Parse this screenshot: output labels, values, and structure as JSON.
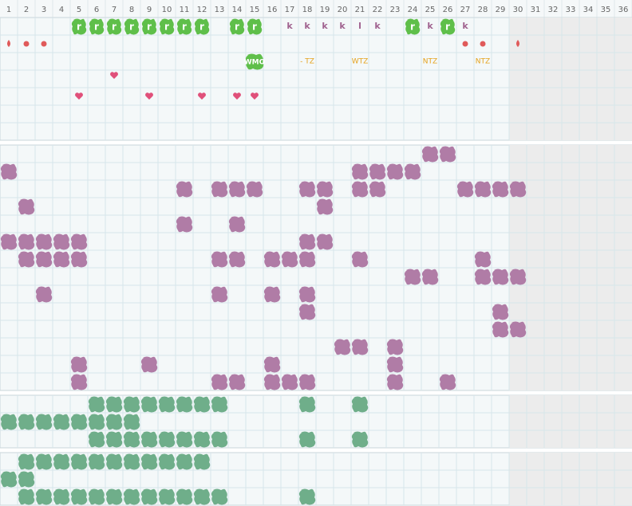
{
  "columns": [
    "1",
    "2",
    "3",
    "4",
    "5",
    "6",
    "7",
    "8",
    "9",
    "10",
    "11",
    "12",
    "13",
    "14",
    "15",
    "16",
    "17",
    "18",
    "19",
    "20",
    "21",
    "22",
    "23",
    "24",
    "25",
    "26",
    "27",
    "28",
    "29",
    "30",
    "31",
    "32",
    "33",
    "34",
    "35",
    "36"
  ],
  "top_rows": [
    [
      {
        "day": 5,
        "label": "r",
        "kind": "tag"
      },
      {
        "day": 6,
        "label": "r",
        "kind": "tag"
      },
      {
        "day": 7,
        "label": "r",
        "kind": "tag"
      },
      {
        "day": 8,
        "label": "r",
        "kind": "tag"
      },
      {
        "day": 9,
        "label": "r",
        "kind": "tag"
      },
      {
        "day": 10,
        "label": "r",
        "kind": "tag"
      },
      {
        "day": 11,
        "label": "r",
        "kind": "tag"
      },
      {
        "day": 12,
        "label": "r",
        "kind": "tag"
      },
      {
        "day": 14,
        "label": "r",
        "kind": "tag"
      },
      {
        "day": 15,
        "label": "r",
        "kind": "tag"
      },
      {
        "day": 17,
        "label": "k",
        "kind": "text"
      },
      {
        "day": 18,
        "label": "k",
        "kind": "text"
      },
      {
        "day": 19,
        "label": "k",
        "kind": "text"
      },
      {
        "day": 20,
        "label": "k",
        "kind": "text"
      },
      {
        "day": 21,
        "label": "l",
        "kind": "text"
      },
      {
        "day": 22,
        "label": "k",
        "kind": "text"
      },
      {
        "day": 24,
        "label": "r",
        "kind": "tag"
      },
      {
        "day": 25,
        "label": "k",
        "kind": "text"
      },
      {
        "day": 26,
        "label": "r",
        "kind": "tag"
      },
      {
        "day": 27,
        "label": "k",
        "kind": "text"
      }
    ],
    [
      {
        "day": 1,
        "kind": "drop"
      },
      {
        "day": 2,
        "kind": "dot"
      },
      {
        "day": 3,
        "kind": "dot"
      },
      {
        "day": 27,
        "kind": "dot"
      },
      {
        "day": 28,
        "kind": "dot"
      },
      {
        "day": 30,
        "kind": "drop"
      }
    ],
    [
      {
        "day": 15,
        "label": "WMO",
        "kind": "tag"
      },
      {
        "day": 18,
        "label": "- TZ",
        "kind": "note"
      },
      {
        "day": 21,
        "label": "WTZ",
        "kind": "note"
      },
      {
        "day": 25,
        "label": "NTZ",
        "kind": "note"
      },
      {
        "day": 28,
        "label": "NTZ",
        "kind": "note"
      }
    ],
    [
      {
        "day": 7,
        "kind": "heart"
      }
    ],
    [
      {
        "day": 5,
        "kind": "heart"
      },
      {
        "day": 9,
        "kind": "heart"
      },
      {
        "day": 12,
        "kind": "heart"
      },
      {
        "day": 14,
        "kind": "heart"
      },
      {
        "day": 15,
        "kind": "heart"
      }
    ],
    [],
    []
  ],
  "sections": [
    {
      "color": "#b07ca6",
      "rows": [
        [
          25,
          26
        ],
        [
          1,
          21,
          22,
          23,
          24
        ],
        [
          11,
          13,
          14,
          15,
          18,
          19,
          21,
          22,
          27,
          28,
          29,
          30
        ],
        [
          2,
          19
        ],
        [
          11,
          14
        ],
        [
          1,
          2,
          3,
          4,
          5,
          18,
          19
        ],
        [
          2,
          3,
          4,
          5,
          13,
          14,
          16,
          17,
          18,
          21,
          28
        ],
        [
          24,
          25,
          28,
          29,
          30
        ],
        [
          3,
          13,
          16,
          18
        ],
        [
          18,
          29
        ],
        [
          29,
          30
        ],
        [
          20,
          21,
          23
        ],
        [
          5,
          9,
          16,
          23
        ],
        [
          5,
          13,
          14,
          16,
          17,
          18,
          23,
          26
        ]
      ]
    },
    {
      "color": "#6fae8a",
      "rows": [
        [
          6,
          7,
          8,
          9,
          10,
          11,
          12,
          13,
          18,
          21
        ],
        [
          1,
          2,
          3,
          4,
          5,
          6,
          7,
          8
        ],
        [
          6,
          7,
          8,
          9,
          10,
          11,
          12,
          13,
          18,
          21
        ]
      ]
    },
    {
      "color": "#6fae8a",
      "rows": [
        [
          2,
          3,
          4,
          5,
          6,
          7,
          8,
          9,
          10,
          11,
          12
        ],
        [
          1,
          2
        ],
        [
          2,
          3,
          4,
          5,
          6,
          7,
          8,
          9,
          10,
          11,
          12,
          13,
          18
        ]
      ]
    }
  ]
}
